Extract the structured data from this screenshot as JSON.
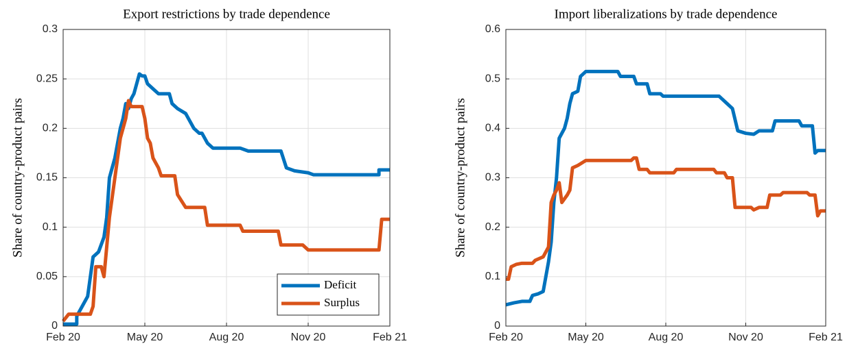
{
  "chart_data": [
    {
      "type": "line",
      "title": "Export restrictions by trade dependence",
      "ylabel": "Share of country-product pairs",
      "xlim": [
        0,
        12
      ],
      "xticks": [
        {
          "value": 0,
          "label": "Feb 20"
        },
        {
          "value": 3,
          "label": "May 20"
        },
        {
          "value": 6,
          "label": "Aug 20"
        },
        {
          "value": 9,
          "label": "Nov 20"
        },
        {
          "value": 12,
          "label": "Feb 21"
        }
      ],
      "ylim": [
        0,
        0.3
      ],
      "yticks": [
        0,
        0.05,
        0.1,
        0.15,
        0.2,
        0.25,
        0.3
      ],
      "grid": true,
      "legend": "lower right",
      "series": [
        {
          "name": "Deficit",
          "color": "#0072bd",
          "x": [
            0,
            0.5,
            0.5,
            0.7,
            0.9,
            1.0,
            1.1,
            1.3,
            1.5,
            1.6,
            1.7,
            1.8,
            1.9,
            2.0,
            2.1,
            2.2,
            2.3,
            2.4,
            2.5,
            2.6,
            2.7,
            2.8,
            2.9,
            3.0,
            3.1,
            3.3,
            3.5,
            3.9,
            4.0,
            4.2,
            4.5,
            4.6,
            4.8,
            5.0,
            5.1,
            5.3,
            5.5,
            6.5,
            6.8,
            7.0,
            8.0,
            8.2,
            8.5,
            9.0,
            9.2,
            11.6,
            11.6,
            12
          ],
          "values": [
            0.002,
            0.002,
            0.01,
            0.02,
            0.03,
            0.05,
            0.07,
            0.075,
            0.09,
            0.11,
            0.15,
            0.16,
            0.17,
            0.185,
            0.2,
            0.21,
            0.225,
            0.22,
            0.23,
            0.235,
            0.245,
            0.255,
            0.253,
            0.253,
            0.245,
            0.24,
            0.235,
            0.235,
            0.225,
            0.22,
            0.215,
            0.21,
            0.2,
            0.195,
            0.195,
            0.185,
            0.18,
            0.18,
            0.177,
            0.177,
            0.177,
            0.16,
            0.157,
            0.155,
            0.153,
            0.153,
            0.158,
            0.158
          ]
        },
        {
          "name": "Surplus",
          "color": "#d95319",
          "x": [
            0,
            0.2,
            1.0,
            1.1,
            1.2,
            1.4,
            1.5,
            1.6,
            1.7,
            1.8,
            2.0,
            2.1,
            2.2,
            2.3,
            2.4,
            2.5,
            2.9,
            3.0,
            3.1,
            3.2,
            3.3,
            3.5,
            3.6,
            4.1,
            4.2,
            4.5,
            5.2,
            5.3,
            6.5,
            6.6,
            7.9,
            8.0,
            8.8,
            9.0,
            11.6,
            11.7,
            12
          ],
          "values": [
            0.005,
            0.012,
            0.012,
            0.02,
            0.06,
            0.06,
            0.05,
            0.08,
            0.11,
            0.13,
            0.17,
            0.19,
            0.2,
            0.21,
            0.228,
            0.222,
            0.222,
            0.21,
            0.19,
            0.185,
            0.17,
            0.16,
            0.152,
            0.152,
            0.133,
            0.12,
            0.12,
            0.102,
            0.102,
            0.096,
            0.096,
            0.082,
            0.082,
            0.077,
            0.077,
            0.108,
            0.108
          ]
        }
      ]
    },
    {
      "type": "line",
      "title": "Import liberalizations by trade dependence",
      "ylabel": "Share of country-product pairs",
      "xlim": [
        0,
        12
      ],
      "xticks": [
        {
          "value": 0,
          "label": "Feb 20"
        },
        {
          "value": 3,
          "label": "May 20"
        },
        {
          "value": 6,
          "label": "Aug 20"
        },
        {
          "value": 9,
          "label": "Nov 20"
        },
        {
          "value": 12,
          "label": "Feb 21"
        }
      ],
      "ylim": [
        0,
        0.6
      ],
      "yticks": [
        0,
        0.1,
        0.2,
        0.3,
        0.4,
        0.5,
        0.6
      ],
      "grid": true,
      "series": [
        {
          "color": "#0072bd",
          "x": [
            0,
            0.3,
            0.6,
            0.9,
            1.0,
            1.2,
            1.4,
            1.5,
            1.6,
            1.7,
            1.8,
            1.9,
            2.0,
            2.1,
            2.2,
            2.3,
            2.4,
            2.5,
            2.7,
            2.8,
            2.9,
            3.0,
            4.2,
            4.3,
            4.8,
            4.9,
            5.3,
            5.4,
            5.8,
            5.9,
            8.0,
            8.1,
            8.3,
            8.5,
            8.7,
            9.0,
            9.3,
            9.5,
            10.0,
            10.1,
            11.0,
            11.1,
            11.5,
            11.6,
            11.7,
            12
          ],
          "values": [
            0.043,
            0.047,
            0.05,
            0.05,
            0.062,
            0.065,
            0.07,
            0.1,
            0.13,
            0.17,
            0.25,
            0.3,
            0.38,
            0.39,
            0.4,
            0.42,
            0.45,
            0.47,
            0.475,
            0.505,
            0.51,
            0.515,
            0.515,
            0.505,
            0.505,
            0.49,
            0.49,
            0.47,
            0.47,
            0.465,
            0.465,
            0.46,
            0.45,
            0.44,
            0.395,
            0.39,
            0.388,
            0.395,
            0.395,
            0.415,
            0.415,
            0.405,
            0.405,
            0.35,
            0.355,
            0.355
          ]
        },
        {
          "color": "#d95319",
          "x": [
            0,
            0.1,
            0.2,
            0.4,
            0.6,
            1.0,
            1.1,
            1.4,
            1.6,
            1.7,
            1.8,
            1.9,
            2.0,
            2.1,
            2.3,
            2.4,
            2.5,
            2.7,
            3.0,
            4.7,
            4.8,
            4.9,
            5.0,
            5.3,
            5.4,
            6.3,
            6.4,
            7.8,
            7.9,
            8.2,
            8.3,
            8.5,
            8.6,
            9.2,
            9.3,
            9.5,
            9.8,
            9.9,
            10.3,
            10.4,
            11.3,
            11.4,
            11.6,
            11.7,
            11.8,
            12
          ],
          "values": [
            0.095,
            0.095,
            0.12,
            0.125,
            0.127,
            0.127,
            0.133,
            0.14,
            0.16,
            0.25,
            0.265,
            0.275,
            0.29,
            0.25,
            0.265,
            0.275,
            0.32,
            0.325,
            0.335,
            0.335,
            0.34,
            0.34,
            0.317,
            0.317,
            0.31,
            0.31,
            0.317,
            0.317,
            0.31,
            0.31,
            0.3,
            0.3,
            0.24,
            0.24,
            0.235,
            0.24,
            0.24,
            0.265,
            0.265,
            0.27,
            0.27,
            0.265,
            0.265,
            0.223,
            0.233,
            0.233
          ]
        }
      ]
    }
  ]
}
